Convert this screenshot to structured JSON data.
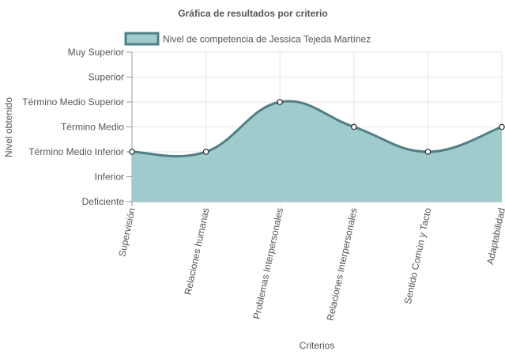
{
  "colors": {
    "line": "#4f7f84",
    "fill": "#9fcbcc",
    "grid": "#e4e4e4",
    "axis": "#999999",
    "point_fill": "#ffffff",
    "point_stroke": "#222222"
  },
  "chart_data": {
    "type": "line",
    "title": "Gráfica de resultados por criterio",
    "xlabel": "Criterios",
    "ylabel": "Nivel obtenido",
    "categories": [
      "Supervisión",
      "Relaciones humanas",
      "Problemas Interpersonales",
      "Relaciones Interpersonales",
      "Sentido Común y Tacto",
      "Adaptabilidad"
    ],
    "y_levels": [
      "Deficiente",
      "Inferior",
      "Término Medio Inferior",
      "Término Medio",
      "Término Medio Superior",
      "Superior",
      "Muy Superior"
    ],
    "ylim": [
      0,
      6
    ],
    "series": [
      {
        "name": "Nivel de competencia de Jessica Tejeda Martínez",
        "values": [
          2,
          2,
          4,
          3,
          2,
          3
        ]
      }
    ],
    "area_fill": true,
    "smooth": true,
    "grid": true,
    "legend_position": "top"
  }
}
